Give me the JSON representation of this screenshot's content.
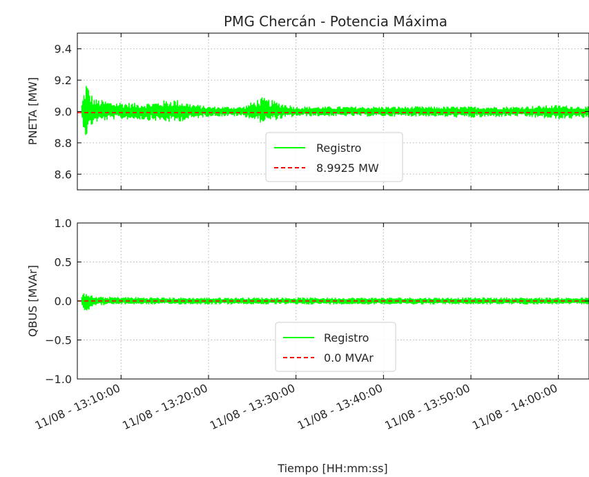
{
  "figure": {
    "title": "PMG Chercán - Potencia Máxima",
    "xlabel": "Tiempo [HH:mm:ss]",
    "x_tick_labels": [
      "11/08 - 13:10:00",
      "11/08 - 13:20:00",
      "11/08 - 13:30:00",
      "11/08 - 13:40:00",
      "11/08 - 13:50:00",
      "11/08 - 14:00:00"
    ]
  },
  "colors": {
    "registro": "#00ff00",
    "reference": "#ff0000",
    "grid": "#b0b0b0",
    "axes": "#000000"
  },
  "chart_data": [
    {
      "type": "line",
      "ylabel": "PNETA [MW]",
      "x_range": [
        "11/08 - 13:05:00",
        "11/08 - 14:03:30"
      ],
      "ylim": [
        8.5,
        9.5
      ],
      "y_ticks": [
        8.6,
        8.8,
        9.0,
        9.2,
        9.4
      ],
      "y_tick_labels": [
        "8.6",
        "8.8",
        "9.0",
        "9.2",
        "9.4"
      ],
      "grid": true,
      "legend": "center",
      "series": [
        {
          "name": "Registro",
          "style": "solid",
          "note_values": "noisy signal around 9.0 with spikes",
          "x": [
            "13:05:30",
            "13:06:00",
            "13:06:30",
            "13:07:00",
            "13:08:00",
            "13:09:00",
            "13:10:00",
            "13:12:00",
            "13:14:00",
            "13:16:00",
            "13:18:00",
            "13:20:00",
            "13:24:00",
            "13:26:00",
            "13:30:00",
            "13:35:00",
            "13:40:00",
            "13:45:00",
            "13:50:00",
            "13:55:00",
            "14:00:00",
            "14:03:00"
          ],
          "values_center": [
            9.0,
            9.0,
            9.0,
            9.0,
            9.0,
            9.0,
            9.0,
            9.0,
            9.0,
            9.0,
            9.0,
            9.0,
            9.0,
            9.0,
            9.0,
            9.0,
            9.0,
            9.0,
            9.0,
            9.0,
            9.0,
            9.0
          ],
          "values_max": [
            9.05,
            9.2,
            9.12,
            9.08,
            9.07,
            9.06,
            9.06,
            9.05,
            9.06,
            9.08,
            9.05,
            9.03,
            9.03,
            9.09,
            9.03,
            9.03,
            9.03,
            9.03,
            9.03,
            9.03,
            9.04,
            9.03
          ],
          "values_min": [
            8.95,
            8.83,
            8.9,
            8.93,
            8.94,
            8.95,
            8.95,
            8.95,
            8.94,
            8.93,
            8.95,
            8.97,
            8.97,
            8.93,
            8.97,
            8.97,
            8.97,
            8.97,
            8.96,
            8.97,
            8.95,
            8.96
          ]
        },
        {
          "name": "8.9925 MW",
          "style": "dashed",
          "values": [
            8.9925
          ]
        }
      ]
    },
    {
      "type": "line",
      "ylabel": "QBUS [MVAr]",
      "x_range": [
        "11/08 - 13:05:00",
        "11/08 - 14:03:30"
      ],
      "ylim": [
        -1.0,
        1.0
      ],
      "y_ticks": [
        -1.0,
        -0.5,
        0.0,
        0.5,
        1.0
      ],
      "y_tick_labels": [
        "−1.0",
        "−0.5",
        "0.0",
        "0.5",
        "1.0"
      ],
      "grid": true,
      "legend": "lower center",
      "series": [
        {
          "name": "Registro",
          "style": "solid",
          "x": [
            "13:05:30",
            "13:06:00",
            "13:06:30",
            "13:07:00",
            "13:08:00",
            "13:10:00",
            "13:15:00",
            "13:20:00",
            "13:30:00",
            "13:40:00",
            "13:50:00",
            "14:00:00",
            "14:03:00"
          ],
          "values_center": [
            0,
            0,
            0,
            0,
            0,
            0,
            0,
            0,
            0,
            0,
            0,
            0,
            0
          ],
          "values_max": [
            0.05,
            0.16,
            0.08,
            0.05,
            0.05,
            0.05,
            0.04,
            0.04,
            0.04,
            0.04,
            0.04,
            0.04,
            0.04
          ],
          "values_min": [
            -0.05,
            -0.17,
            -0.08,
            -0.05,
            -0.05,
            -0.04,
            -0.04,
            -0.04,
            -0.04,
            -0.04,
            -0.04,
            -0.04,
            -0.04
          ]
        },
        {
          "name": "0.0 MVAr",
          "style": "dashed",
          "values": [
            0.0
          ]
        }
      ]
    }
  ]
}
